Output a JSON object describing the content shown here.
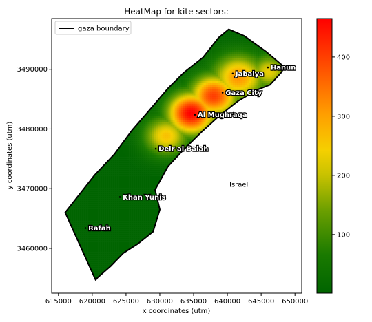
{
  "title": "HeatMap for kite sectors:",
  "xlabel": "x coordinates (utm)",
  "ylabel": "y coordinates (utm)",
  "legend": {
    "label": "gaza boundary",
    "placement": "upper-left"
  },
  "annotation": "Israel",
  "colors": {
    "low": "#006400",
    "mid_low": "#f5d000",
    "mid": "#ff8c00",
    "high": "#ff0000",
    "boundary": "#000000"
  },
  "chart_data": {
    "type": "heatmap",
    "title": "HeatMap for kite sectors:",
    "xlabel": "x coordinates (utm)",
    "ylabel": "y coordinates (utm)",
    "xlim": [
      614000,
      651000
    ],
    "ylim": [
      3452500,
      3498500
    ],
    "x_ticks": [
      615000,
      620000,
      625000,
      630000,
      635000,
      640000,
      645000,
      650000
    ],
    "x_tick_labels": [
      "615000",
      "620000",
      "625000",
      "630000",
      "635000",
      "640000",
      "645000",
      "650000"
    ],
    "y_ticks": [
      3460000,
      3470000,
      3480000,
      3490000
    ],
    "y_tick_labels": [
      "3460000",
      "3470000",
      "3480000",
      "3490000"
    ],
    "colorbar": {
      "range": [
        1,
        465
      ],
      "ticks": [
        100,
        200,
        300,
        400
      ],
      "tick_labels": [
        "100",
        "200",
        "300",
        "400"
      ]
    },
    "boundary": [
      [
        616000,
        3466000
      ],
      [
        620500,
        3454700
      ],
      [
        620800,
        3455100
      ],
      [
        622700,
        3457000
      ],
      [
        624600,
        3459200
      ],
      [
        626800,
        3460800
      ],
      [
        629000,
        3462800
      ],
      [
        630000,
        3466500
      ],
      [
        629300,
        3469800
      ],
      [
        631200,
        3473700
      ],
      [
        633500,
        3476500
      ],
      [
        636000,
        3479300
      ],
      [
        638800,
        3482200
      ],
      [
        641600,
        3484700
      ],
      [
        644500,
        3486600
      ],
      [
        646300,
        3487400
      ],
      [
        648000,
        3489500
      ],
      [
        648400,
        3490400
      ],
      [
        645800,
        3492900
      ],
      [
        642500,
        3495600
      ],
      [
        640200,
        3496700
      ],
      [
        638700,
        3495300
      ],
      [
        636400,
        3492000
      ],
      [
        633600,
        3489500
      ],
      [
        631200,
        3486800
      ],
      [
        628200,
        3482800
      ],
      [
        625900,
        3479800
      ],
      [
        623300,
        3475800
      ],
      [
        620300,
        3472200
      ],
      [
        616000,
        3466000
      ]
    ],
    "cities": [
      {
        "name": "Hanun",
        "x": 646000,
        "y": 3490300
      },
      {
        "name": "Jabalya",
        "x": 640800,
        "y": 3489300
      },
      {
        "name": "Gaza City",
        "x": 639300,
        "y": 3486100
      },
      {
        "name": "Al Mughraqa",
        "x": 635200,
        "y": 3482400
      },
      {
        "name": "Deir al Balah",
        "x": 629400,
        "y": 3476700
      },
      {
        "name": "Khan Yunis",
        "x": 624100,
        "y": 3468600
      },
      {
        "name": "Rafah",
        "x": 619000,
        "y": 3463400
      }
    ],
    "annotation": {
      "text": "Israel",
      "x": 640300,
      "y": 3470300
    },
    "hotspots": [
      {
        "x": 634500,
        "y": 3482800,
        "value": 465,
        "spread": 3200
      },
      {
        "x": 637800,
        "y": 3485700,
        "value": 400,
        "spread": 3200
      },
      {
        "x": 641500,
        "y": 3488800,
        "value": 310,
        "spread": 3500
      },
      {
        "x": 630800,
        "y": 3479000,
        "value": 260,
        "spread": 3000
      },
      {
        "x": 646000,
        "y": 3489800,
        "value": 230,
        "spread": 2600
      }
    ]
  }
}
